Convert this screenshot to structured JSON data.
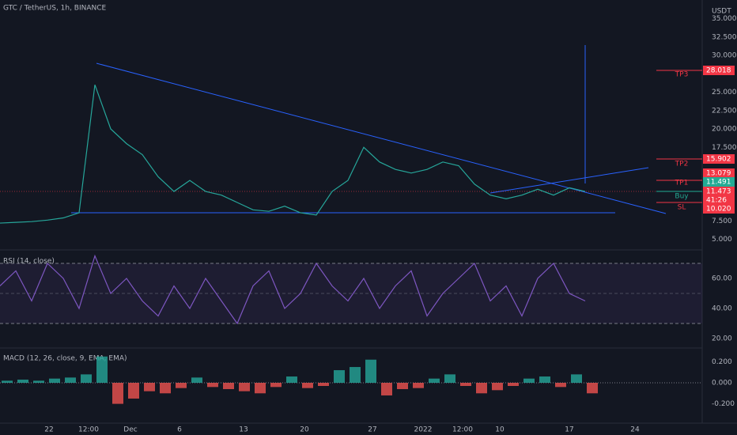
{
  "header": {
    "symbol": "GTC / TetherUS, 1h, BINANCE",
    "currency": "USDT"
  },
  "price_axis": {
    "ticks": [
      "35.000",
      "32.500",
      "30.000",
      "25.000",
      "22.500",
      "20.000",
      "17.500",
      "7.500",
      "5.000"
    ]
  },
  "price_labels": [
    {
      "text": "28.018",
      "color": "#f23645"
    },
    {
      "text": "15.902",
      "color": "#f23645"
    },
    {
      "text": "13.079",
      "color": "#f23645"
    },
    {
      "text": "11.491",
      "color": "#22ab94"
    },
    {
      "text": "11.473",
      "color": "#f23645"
    },
    {
      "text": "41:26",
      "color": "#f23645"
    },
    {
      "text": "10.020",
      "color": "#f23645"
    }
  ],
  "levels": [
    {
      "label": "TP3"
    },
    {
      "label": "TP2"
    },
    {
      "label": "TP1"
    },
    {
      "label": "Buy"
    },
    {
      "label": "SL"
    }
  ],
  "price_series": [
    7.2,
    7.3,
    7.4,
    7.6,
    7.9,
    8.6,
    26,
    20,
    18,
    16.5,
    13.5,
    11.5,
    13,
    11.5,
    11,
    10,
    9,
    8.8,
    9.5,
    8.6,
    8.3,
    11.5,
    13,
    17.5,
    15.5,
    14.5,
    14,
    14.5,
    15.5,
    15,
    12.5,
    11,
    10.5,
    11,
    11.8,
    11,
    12,
    11.5
  ],
  "rsi": {
    "title": "RSI (14, close)",
    "ticks": [
      "60.00",
      "40.00",
      "20.00"
    ],
    "values": [
      55,
      65,
      45,
      70,
      60,
      40,
      75,
      50,
      60,
      45,
      35,
      55,
      40,
      60,
      45,
      30,
      55,
      65,
      40,
      50,
      70,
      55,
      45,
      60,
      40,
      55,
      65,
      35,
      50,
      60,
      70,
      45,
      55,
      35,
      60,
      70,
      50,
      45
    ]
  },
  "macd": {
    "title": "MACD (12, 26, close, 9, EMA, EMA)",
    "ticks": [
      "0.200",
      "0.000",
      "-0.200"
    ],
    "histogram": [
      0.02,
      0.03,
      0.02,
      0.04,
      0.05,
      0.08,
      0.25,
      -0.2,
      -0.15,
      -0.08,
      -0.1,
      -0.05,
      0.05,
      -0.04,
      -0.06,
      -0.08,
      -0.1,
      -0.04,
      0.06,
      -0.05,
      -0.03,
      0.12,
      0.15,
      0.22,
      -0.12,
      -0.06,
      -0.05,
      0.04,
      0.08,
      -0.03,
      -0.1,
      -0.07,
      -0.03,
      0.04,
      0.06,
      -0.04,
      0.08,
      -0.1
    ]
  },
  "time_axis": [
    "22",
    "12:00",
    "Dec",
    "6",
    "13",
    "20",
    "27",
    "2022",
    "12:00",
    "10",
    "17",
    "24"
  ]
}
